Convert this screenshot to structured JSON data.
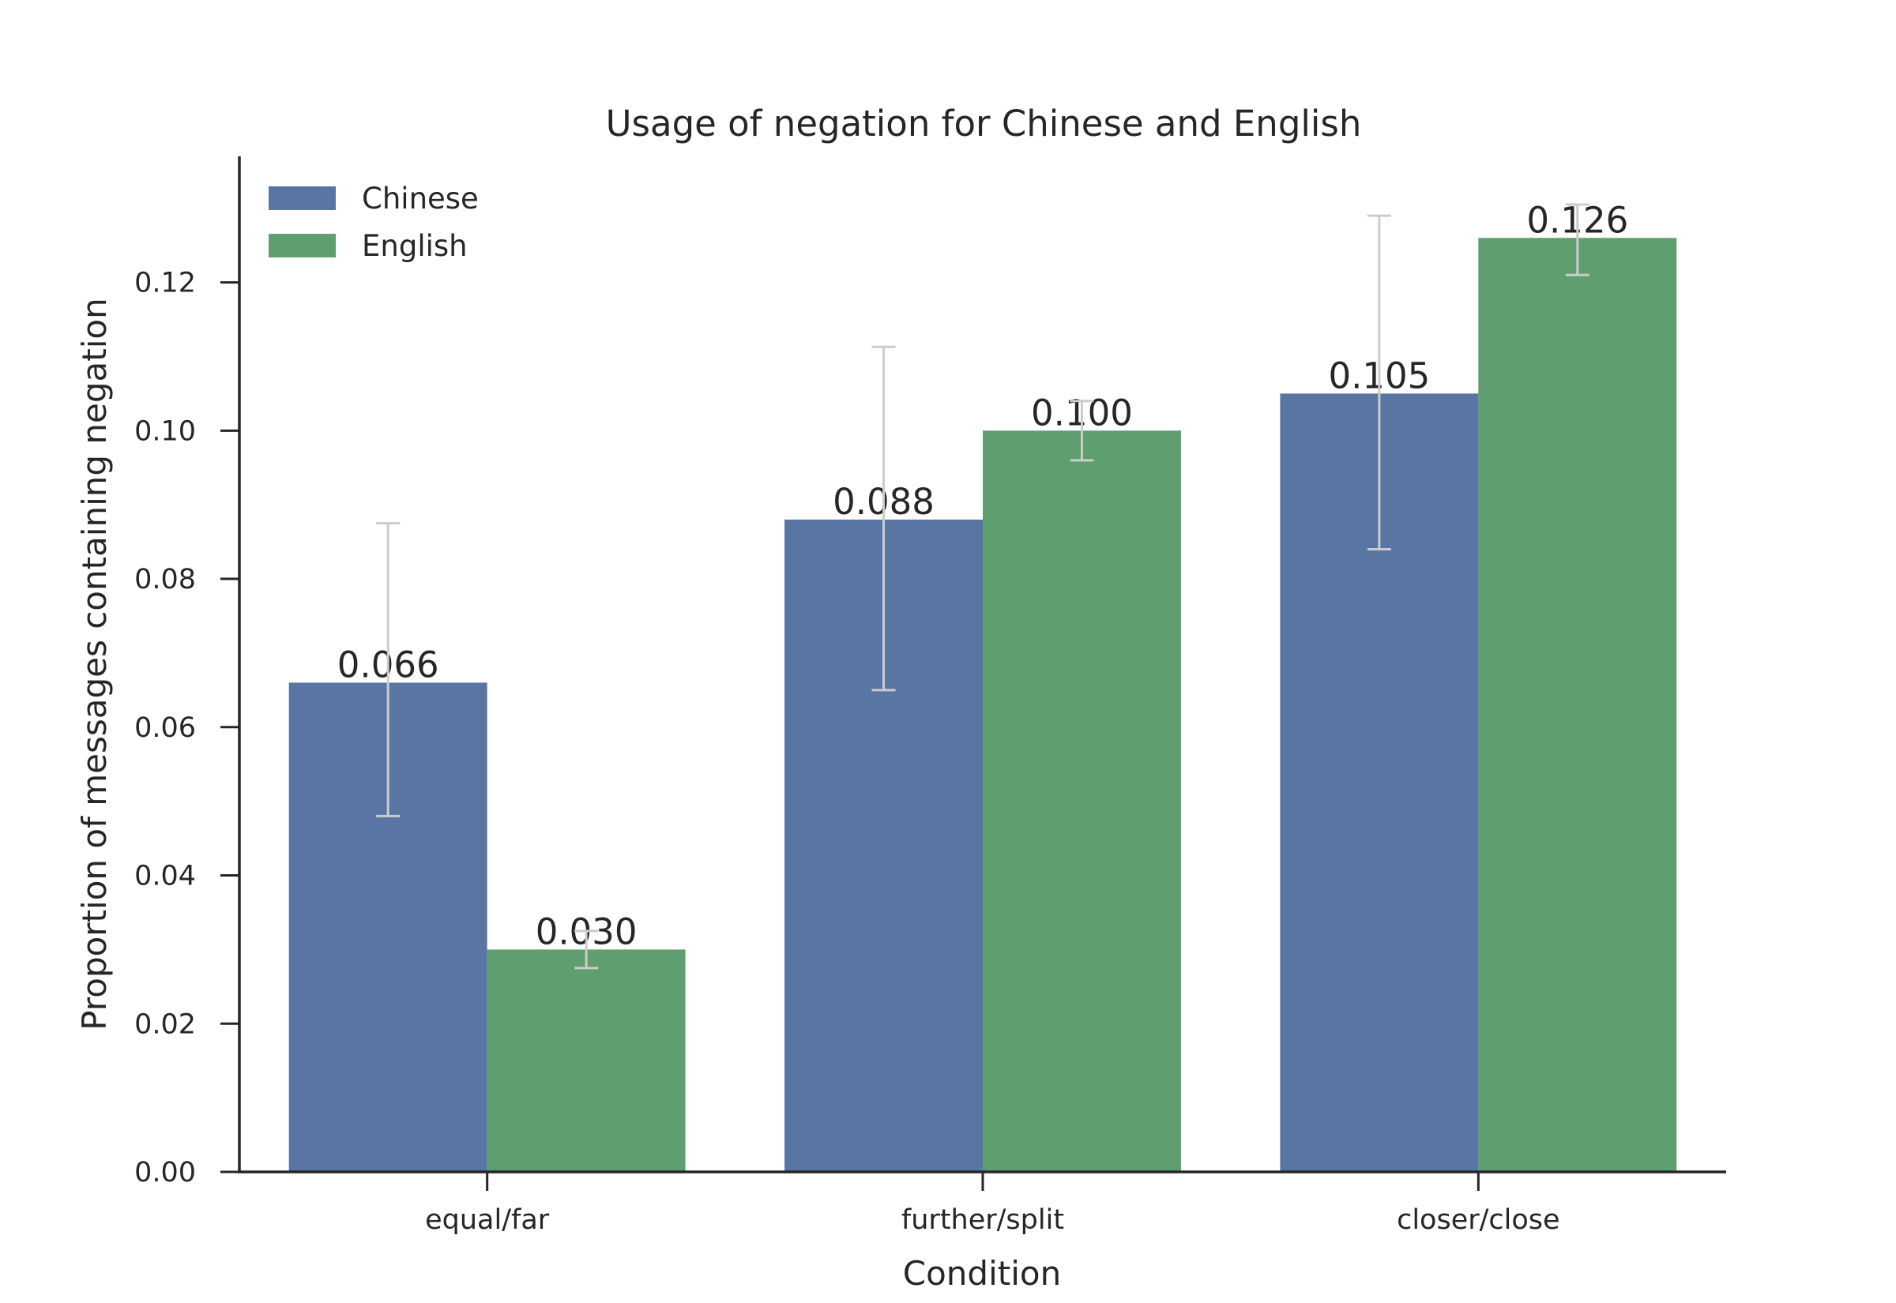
{
  "chart_data": {
    "type": "bar",
    "title": "Usage of negation for Chinese and English",
    "xlabel": "Condition",
    "ylabel": "Proportion of messages containing negation",
    "categories": [
      "equal/far",
      "further/split",
      "closer/close"
    ],
    "ylim": [
      0,
      0.137
    ],
    "yticks": [
      "0.00",
      "0.02",
      "0.04",
      "0.06",
      "0.08",
      "0.10",
      "0.12"
    ],
    "legend_position": "top-left",
    "grid": false,
    "series": [
      {
        "name": "Chinese",
        "color": "#5975a4",
        "values": [
          0.066,
          0.088,
          0.105
        ],
        "labels": [
          "0.066",
          "0.088",
          "0.105"
        ],
        "error_low": [
          0.048,
          0.065,
          0.084
        ],
        "error_high": [
          0.0875,
          0.1113,
          0.129
        ]
      },
      {
        "name": "English",
        "color": "#5f9e6e",
        "values": [
          0.03,
          0.1,
          0.126
        ],
        "labels": [
          "0.030",
          "0.100",
          "0.126"
        ],
        "error_low": [
          0.0275,
          0.096,
          0.121
        ],
        "error_high": [
          0.0325,
          0.104,
          0.1305
        ]
      }
    ]
  }
}
